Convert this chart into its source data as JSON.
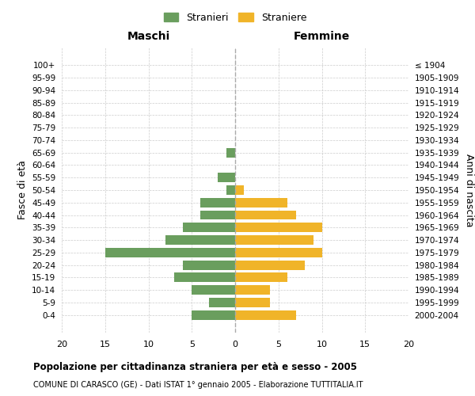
{
  "age_groups": [
    "100+",
    "95-99",
    "90-94",
    "85-89",
    "80-84",
    "75-79",
    "70-74",
    "65-69",
    "60-64",
    "55-59",
    "50-54",
    "45-49",
    "40-44",
    "35-39",
    "30-34",
    "25-29",
    "20-24",
    "15-19",
    "10-14",
    "5-9",
    "0-4"
  ],
  "birth_years": [
    "≤ 1904",
    "1905-1909",
    "1910-1914",
    "1915-1919",
    "1920-1924",
    "1925-1929",
    "1930-1934",
    "1935-1939",
    "1940-1944",
    "1945-1949",
    "1950-1954",
    "1955-1959",
    "1960-1964",
    "1965-1969",
    "1970-1974",
    "1975-1979",
    "1980-1984",
    "1985-1989",
    "1990-1994",
    "1995-1999",
    "2000-2004"
  ],
  "maschi": [
    0,
    0,
    0,
    0,
    0,
    0,
    0,
    1,
    0,
    2,
    1,
    4,
    4,
    6,
    8,
    15,
    6,
    7,
    5,
    3,
    5
  ],
  "femmine": [
    0,
    0,
    0,
    0,
    0,
    0,
    0,
    0,
    0,
    0,
    1,
    6,
    7,
    10,
    9,
    10,
    8,
    6,
    4,
    4,
    7
  ],
  "color_maschi": "#6a9e5e",
  "color_femmine": "#f0b429",
  "title": "Popolazione per cittadinanza straniera per età e sesso - 2005",
  "subtitle": "COMUNE DI CARASCO (GE) - Dati ISTAT 1° gennaio 2005 - Elaborazione TUTTITALIA.IT",
  "ylabel_left": "Fasce di età",
  "ylabel_right": "Anni di nascita",
  "xlabel_maschi": "Maschi",
  "xlabel_femmine": "Femmine",
  "legend_stranieri": "Stranieri",
  "legend_straniere": "Straniere",
  "xlim": 20,
  "background_color": "#ffffff",
  "grid_color": "#cccccc"
}
